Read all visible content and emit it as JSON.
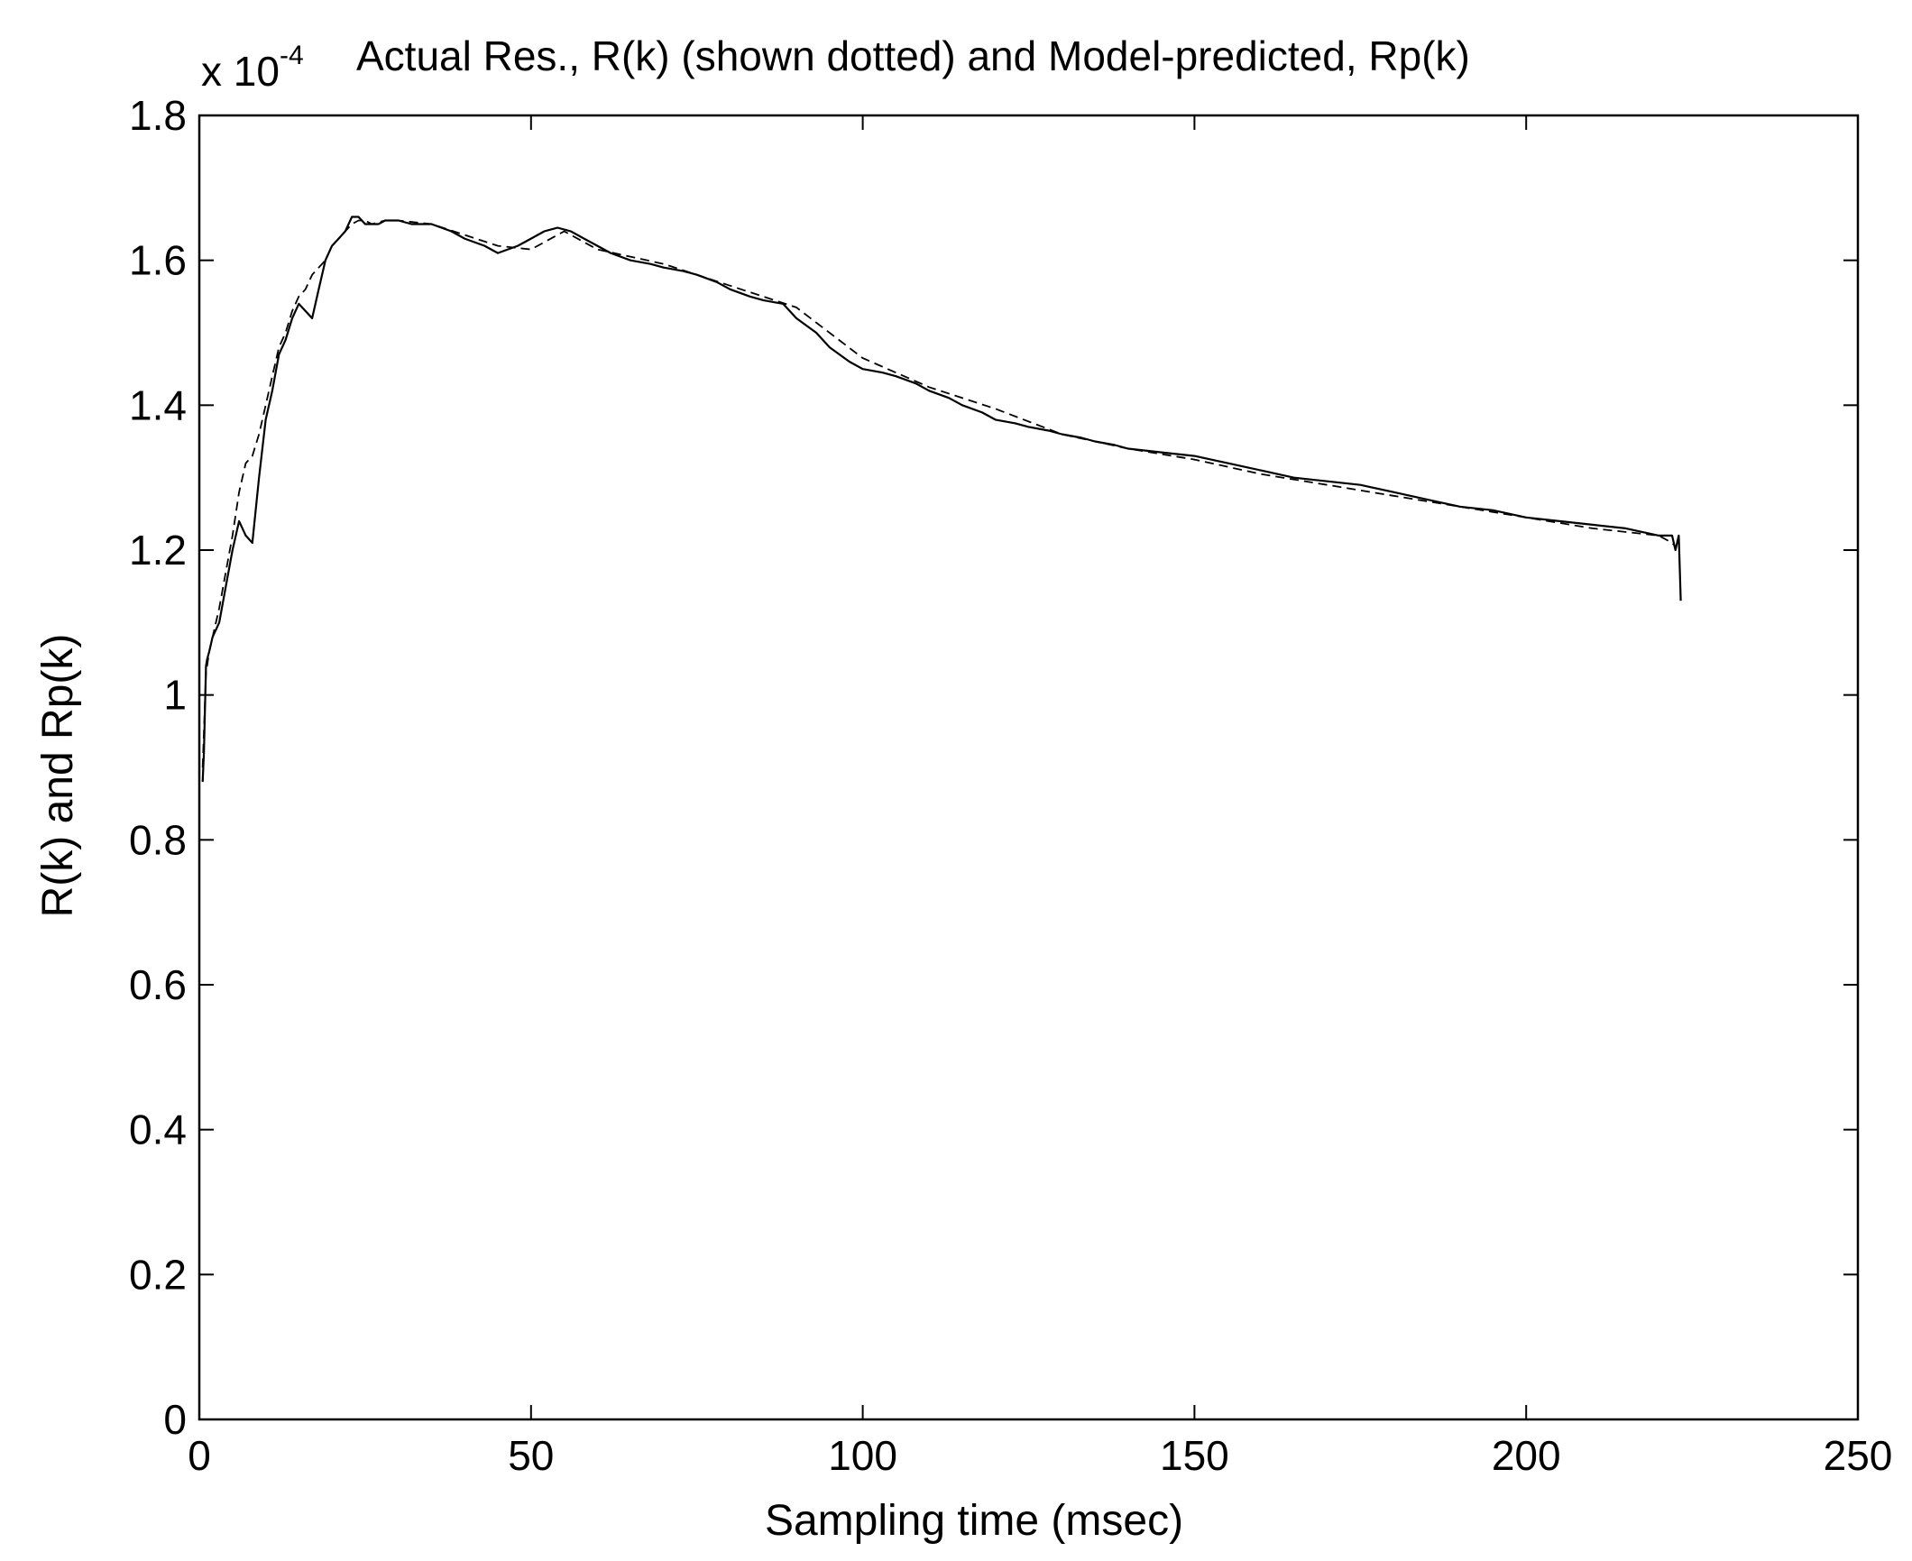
{
  "chart_data": {
    "type": "line",
    "title": "Actual Res., R(k) (shown dotted) and Model-predicted, Rp(k)",
    "xlabel": "Sampling time (msec)",
    "ylabel": "R(k) and Rp(k)",
    "y_multiplier": "x 10",
    "y_multiplier_exponent": "-4",
    "xlim": [
      0,
      250
    ],
    "ylim": [
      0,
      1.8
    ],
    "x_ticks": [
      0,
      50,
      100,
      150,
      200,
      250
    ],
    "x_tick_labels": [
      "0",
      "50",
      "100",
      "150",
      "200",
      "250"
    ],
    "y_ticks": [
      0,
      0.2,
      0.4,
      0.6,
      0.8,
      1.0,
      1.2,
      1.4,
      1.6,
      1.8
    ],
    "y_tick_labels": [
      "0",
      "0.2",
      "0.4",
      "0.6",
      "0.8",
      "1",
      "1.2",
      "1.4",
      "1.6",
      "1.8"
    ],
    "grid": false,
    "box": true,
    "line_color": "#000000",
    "series": [
      {
        "style": "solid",
        "x": [
          0.5,
          0.7,
          1,
          1.2,
          1.5,
          2,
          3,
          4,
          5,
          6,
          7,
          8,
          9,
          10,
          11,
          12,
          13,
          14,
          15,
          16,
          17,
          18,
          19,
          20,
          21,
          22,
          23,
          24,
          25,
          26,
          27,
          28,
          30,
          32,
          35,
          38,
          40,
          43,
          45,
          48,
          50,
          52,
          54,
          56,
          58,
          60,
          62,
          65,
          68,
          70,
          73,
          75,
          78,
          80,
          83,
          85,
          88,
          90,
          93,
          95,
          98,
          100,
          103,
          105,
          108,
          110,
          113,
          115,
          118,
          120,
          123,
          125,
          128,
          130,
          133,
          135,
          138,
          140,
          145,
          150,
          155,
          160,
          165,
          170,
          175,
          180,
          185,
          190,
          195,
          200,
          205,
          210,
          215,
          220,
          222,
          222.5,
          223,
          223.3
        ],
        "values": [
          0.88,
          0.92,
          1.04,
          1.05,
          1.06,
          1.08,
          1.1,
          1.15,
          1.2,
          1.24,
          1.22,
          1.21,
          1.3,
          1.38,
          1.42,
          1.47,
          1.49,
          1.52,
          1.54,
          1.53,
          1.52,
          1.56,
          1.6,
          1.62,
          1.63,
          1.64,
          1.66,
          1.66,
          1.65,
          1.65,
          1.65,
          1.655,
          1.655,
          1.65,
          1.65,
          1.64,
          1.63,
          1.62,
          1.61,
          1.62,
          1.63,
          1.64,
          1.645,
          1.64,
          1.63,
          1.62,
          1.61,
          1.6,
          1.595,
          1.59,
          1.585,
          1.58,
          1.57,
          1.56,
          1.55,
          1.545,
          1.54,
          1.52,
          1.5,
          1.48,
          1.46,
          1.45,
          1.445,
          1.44,
          1.43,
          1.42,
          1.41,
          1.4,
          1.39,
          1.38,
          1.375,
          1.37,
          1.365,
          1.36,
          1.355,
          1.35,
          1.345,
          1.34,
          1.335,
          1.33,
          1.32,
          1.31,
          1.3,
          1.295,
          1.29,
          1.28,
          1.27,
          1.26,
          1.255,
          1.245,
          1.24,
          1.235,
          1.23,
          1.22,
          1.22,
          1.2,
          1.22,
          1.13
        ]
      },
      {
        "style": "dotted",
        "x": [
          0.5,
          1,
          1.5,
          2,
          3,
          4,
          5,
          6,
          7,
          8,
          9,
          10,
          11,
          12,
          13,
          14,
          15,
          16,
          17,
          18,
          19,
          20,
          21,
          22,
          23,
          24,
          25,
          26,
          28,
          30,
          35,
          40,
          45,
          50,
          55,
          60,
          70,
          80,
          90,
          100,
          110,
          120,
          130,
          140,
          150,
          160,
          170,
          180,
          190,
          200,
          210,
          220,
          222,
          222.5
        ],
        "values": [
          0.9,
          1.03,
          1.06,
          1.08,
          1.12,
          1.17,
          1.22,
          1.28,
          1.32,
          1.33,
          1.36,
          1.4,
          1.44,
          1.48,
          1.5,
          1.53,
          1.55,
          1.56,
          1.58,
          1.59,
          1.6,
          1.62,
          1.63,
          1.64,
          1.65,
          1.655,
          1.655,
          1.65,
          1.655,
          1.655,
          1.65,
          1.635,
          1.62,
          1.615,
          1.64,
          1.615,
          1.595,
          1.565,
          1.535,
          1.465,
          1.425,
          1.395,
          1.36,
          1.34,
          1.325,
          1.305,
          1.29,
          1.275,
          1.26,
          1.245,
          1.23,
          1.22,
          1.21,
          1.205
        ]
      }
    ]
  }
}
